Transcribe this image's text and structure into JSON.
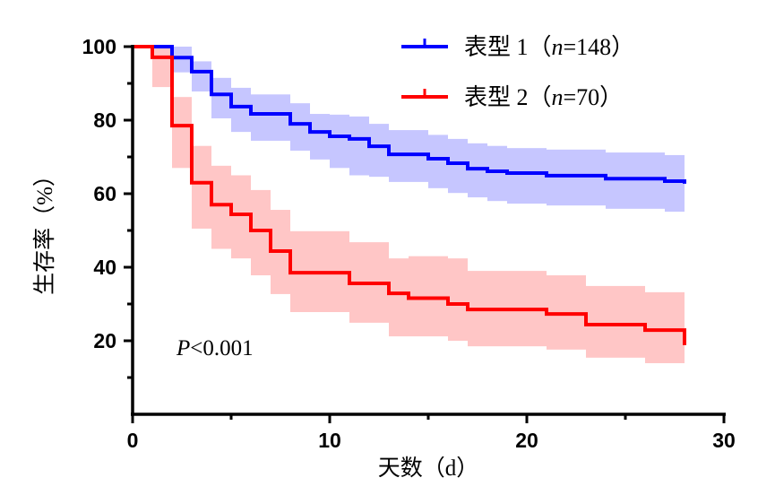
{
  "chart_data": {
    "type": "line",
    "subtype": "kaplan-meier step curve with confidence bands",
    "xlabel": "天数（d）",
    "ylabel": "生存率（%）",
    "xlim": [
      0,
      30
    ],
    "ylim": [
      0,
      100
    ],
    "x_ticks": [
      "0",
      "10",
      "20",
      "30"
    ],
    "y_ticks": [
      "20",
      "40",
      "60",
      "80",
      "100"
    ],
    "grid": false,
    "legend_position": "top-right",
    "annotation": {
      "italic": "P",
      "text": "<0.001"
    },
    "series": [
      {
        "name": "表型 1",
        "legend_prefix": "表型 1（",
        "legend_n_label": "n",
        "legend_n_value": "=148",
        "legend_suffix": "）",
        "color": "#0000ff",
        "band_color": "#b3b3ff",
        "steps_columns": [
          "day",
          "survival",
          "lower",
          "upper"
        ],
        "steps": [
          [
            0,
            100,
            100,
            100
          ],
          [
            2,
            97,
            93,
            100
          ],
          [
            3,
            93.2,
            87.8,
            96
          ],
          [
            4,
            87,
            80.5,
            91.5
          ],
          [
            5,
            83.7,
            76.8,
            88.8
          ],
          [
            6,
            81.7,
            74.4,
            87
          ],
          [
            8,
            79,
            71.7,
            84.6
          ],
          [
            9,
            76.8,
            69.3,
            81.7
          ],
          [
            10,
            75.6,
            67,
            81.5
          ],
          [
            11,
            74.9,
            65,
            81
          ],
          [
            12,
            72.9,
            64.6,
            79
          ],
          [
            13,
            70.7,
            63.2,
            77.3
          ],
          [
            15,
            69.5,
            61.5,
            76
          ],
          [
            16,
            68.3,
            60.2,
            74.9
          ],
          [
            17,
            66.8,
            59,
            73.7
          ],
          [
            18,
            66.1,
            58,
            73
          ],
          [
            19,
            65.6,
            57.3,
            72.4
          ],
          [
            21,
            64.9,
            56.8,
            72
          ],
          [
            24,
            64.1,
            55.9,
            71.2
          ],
          [
            27,
            63.4,
            55.1,
            70.5
          ],
          [
            28,
            62.7,
            55.1,
            70.5
          ]
        ]
      },
      {
        "name": "表型 2",
        "legend_prefix": "表型 2（",
        "legend_n_label": "n",
        "legend_n_value": "=70",
        "legend_suffix": "）",
        "color": "#ff0000",
        "band_color": "#ffb3b3",
        "steps_columns": [
          "day",
          "survival",
          "lower",
          "upper"
        ],
        "steps": [
          [
            0,
            100,
            100,
            100
          ],
          [
            1,
            97.1,
            89,
            100
          ],
          [
            2,
            78.5,
            67,
            86.3
          ],
          [
            3,
            63,
            50.5,
            73
          ],
          [
            4,
            57,
            45,
            67.6
          ],
          [
            5,
            54.4,
            42.4,
            65
          ],
          [
            6,
            50,
            37.8,
            61
          ],
          [
            7,
            44.4,
            32.7,
            55.6
          ],
          [
            8,
            38.5,
            27.8,
            49.8
          ],
          [
            11,
            35.6,
            24.9,
            46.8
          ],
          [
            13,
            32.9,
            21.2,
            42.4
          ],
          [
            14,
            31.6,
            21.2,
            43
          ],
          [
            16,
            30,
            20,
            42.4
          ],
          [
            17,
            28.5,
            18.5,
            39
          ],
          [
            21,
            27.3,
            17.6,
            37.8
          ],
          [
            23,
            24.4,
            15.4,
            34.9
          ],
          [
            26,
            22.9,
            13.9,
            33.2
          ],
          [
            28,
            18.8,
            13.9,
            33.2
          ]
        ]
      }
    ]
  }
}
